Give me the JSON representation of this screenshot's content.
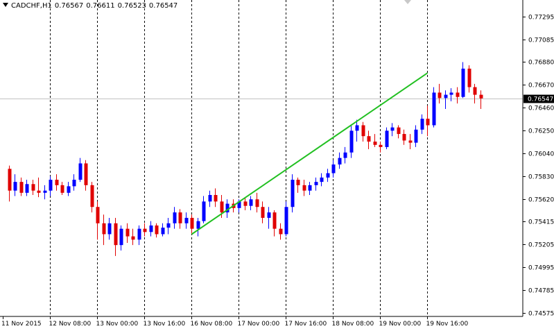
{
  "header": {
    "symbol": "CADCHF,H1",
    "ohlc": [
      "0.76567",
      "0.76611",
      "0.76523",
      "0.76547"
    ]
  },
  "colors": {
    "bull": "#0000ff",
    "bear": "#e00000",
    "trendline": "#22c022",
    "grid": "#000000",
    "price_line": "#c0c0c0",
    "background": "#ffffff"
  },
  "chart_data": {
    "type": "candlestick",
    "ylim": [
      0.74545,
      0.7745
    ],
    "y_ticks": [
      "0.77295",
      "0.77085",
      "0.76880",
      "0.76670",
      "0.76460",
      "0.76250",
      "0.76040",
      "0.75830",
      "0.75620",
      "0.75415",
      "0.75205",
      "0.74995",
      "0.74785",
      "0.74575"
    ],
    "current_price": "0.76547",
    "x_ticks": [
      "11 Nov 2015",
      "12 Nov 08:00",
      "13 Nov 00:00",
      "13 Nov 16:00",
      "16 Nov 08:00",
      "17 Nov 00:00",
      "17 Nov 16:00",
      "18 Nov 08:00",
      "19 Nov 00:00",
      "19 Nov 16:00"
    ],
    "grid": "vertical dashed",
    "trendline": {
      "from": {
        "x": "16 Nov 08:00",
        "y": 0.753
      },
      "to": {
        "x": "19 Nov 16:00",
        "y": 0.7678
      }
    },
    "candles": [
      [
        0.759,
        0.7593,
        0.756,
        0.757
      ],
      [
        0.757,
        0.7585,
        0.7565,
        0.7578
      ],
      [
        0.7578,
        0.7582,
        0.7565,
        0.7568
      ],
      [
        0.7568,
        0.758,
        0.7565,
        0.7576
      ],
      [
        0.7576,
        0.758,
        0.7566,
        0.757
      ],
      [
        0.757,
        0.7582,
        0.7564,
        0.7568
      ],
      [
        0.7568,
        0.7575,
        0.7562,
        0.757
      ],
      [
        0.757,
        0.7583,
        0.7565,
        0.758
      ],
      [
        0.758,
        0.7585,
        0.757,
        0.7575
      ],
      [
        0.7575,
        0.7578,
        0.7566,
        0.7568
      ],
      [
        0.7568,
        0.7578,
        0.7565,
        0.7574
      ],
      [
        0.7574,
        0.7585,
        0.757,
        0.758
      ],
      [
        0.758,
        0.76,
        0.7578,
        0.7595
      ],
      [
        0.7595,
        0.7598,
        0.757,
        0.7575
      ],
      [
        0.7575,
        0.7578,
        0.755,
        0.7555
      ],
      [
        0.7555,
        0.756,
        0.7525,
        0.754
      ],
      [
        0.754,
        0.7548,
        0.752,
        0.753
      ],
      [
        0.753,
        0.7545,
        0.7525,
        0.754
      ],
      [
        0.754,
        0.7545,
        0.751,
        0.752
      ],
      [
        0.752,
        0.7538,
        0.7515,
        0.7535
      ],
      [
        0.7535,
        0.754,
        0.7522,
        0.7528
      ],
      [
        0.7528,
        0.7535,
        0.752,
        0.7525
      ],
      [
        0.7525,
        0.7538,
        0.752,
        0.7535
      ],
      [
        0.7535,
        0.754,
        0.7528,
        0.7532
      ],
      [
        0.7532,
        0.7542,
        0.7528,
        0.7538
      ],
      [
        0.7538,
        0.754,
        0.7527,
        0.753
      ],
      [
        0.753,
        0.754,
        0.7528,
        0.7536
      ],
      [
        0.7536,
        0.7545,
        0.753,
        0.754
      ],
      [
        0.754,
        0.7555,
        0.7535,
        0.755
      ],
      [
        0.755,
        0.7553,
        0.7535,
        0.754
      ],
      [
        0.754,
        0.755,
        0.7535,
        0.7545
      ],
      [
        0.7545,
        0.7548,
        0.753,
        0.7535
      ],
      [
        0.7535,
        0.7545,
        0.7528,
        0.7542
      ],
      [
        0.7542,
        0.7565,
        0.754,
        0.756
      ],
      [
        0.756,
        0.757,
        0.7555,
        0.7566
      ],
      [
        0.7566,
        0.7572,
        0.7555,
        0.756
      ],
      [
        0.756,
        0.7566,
        0.7545,
        0.755
      ],
      [
        0.755,
        0.7562,
        0.7545,
        0.7558
      ],
      [
        0.7558,
        0.7562,
        0.755,
        0.7554
      ],
      [
        0.7554,
        0.7562,
        0.755,
        0.756
      ],
      [
        0.756,
        0.7564,
        0.7552,
        0.7556
      ],
      [
        0.7556,
        0.7565,
        0.7552,
        0.7562
      ],
      [
        0.7562,
        0.7568,
        0.755,
        0.7555
      ],
      [
        0.7555,
        0.756,
        0.754,
        0.7545
      ],
      [
        0.7545,
        0.7555,
        0.7535,
        0.755
      ],
      [
        0.755,
        0.7552,
        0.7528,
        0.7535
      ],
      [
        0.7535,
        0.754,
        0.7525,
        0.753
      ],
      [
        0.753,
        0.756,
        0.7528,
        0.7555
      ],
      [
        0.7555,
        0.7585,
        0.755,
        0.758
      ],
      [
        0.758,
        0.7582,
        0.7568,
        0.7575
      ],
      [
        0.7575,
        0.758,
        0.7565,
        0.757
      ],
      [
        0.757,
        0.7578,
        0.7566,
        0.7575
      ],
      [
        0.7575,
        0.7582,
        0.757,
        0.7578
      ],
      [
        0.7578,
        0.7586,
        0.7574,
        0.7582
      ],
      [
        0.7582,
        0.759,
        0.7578,
        0.7586
      ],
      [
        0.7586,
        0.7598,
        0.7582,
        0.7594
      ],
      [
        0.7594,
        0.7605,
        0.759,
        0.76
      ],
      [
        0.76,
        0.761,
        0.7595,
        0.7605
      ],
      [
        0.7605,
        0.763,
        0.76,
        0.7625
      ],
      [
        0.7625,
        0.7635,
        0.7615,
        0.763
      ],
      [
        0.763,
        0.7633,
        0.7615,
        0.762
      ],
      [
        0.762,
        0.7625,
        0.7608,
        0.7615
      ],
      [
        0.7615,
        0.7622,
        0.761,
        0.7612
      ],
      [
        0.7612,
        0.7615,
        0.7605,
        0.761
      ],
      [
        0.761,
        0.7628,
        0.7608,
        0.7625
      ],
      [
        0.7625,
        0.7632,
        0.762,
        0.7628
      ],
      [
        0.7628,
        0.763,
        0.7618,
        0.7622
      ],
      [
        0.7622,
        0.7626,
        0.7612,
        0.7616
      ],
      [
        0.7616,
        0.7622,
        0.7608,
        0.7614
      ],
      [
        0.7614,
        0.763,
        0.761,
        0.7626
      ],
      [
        0.7626,
        0.764,
        0.7622,
        0.7636
      ],
      [
        0.7636,
        0.7648,
        0.762,
        0.763
      ],
      [
        0.763,
        0.7665,
        0.7628,
        0.766
      ],
      [
        0.766,
        0.7668,
        0.765,
        0.7655
      ],
      [
        0.7655,
        0.7662,
        0.7645,
        0.7658
      ],
      [
        0.7658,
        0.7664,
        0.7652,
        0.766
      ],
      [
        0.766,
        0.7665,
        0.765,
        0.7656
      ],
      [
        0.7656,
        0.7688,
        0.7655,
        0.7682
      ],
      [
        0.7682,
        0.7685,
        0.766,
        0.7665
      ],
      [
        0.7665,
        0.7668,
        0.765,
        0.7658
      ],
      [
        0.7658,
        0.7662,
        0.7645,
        0.76547
      ]
    ]
  }
}
